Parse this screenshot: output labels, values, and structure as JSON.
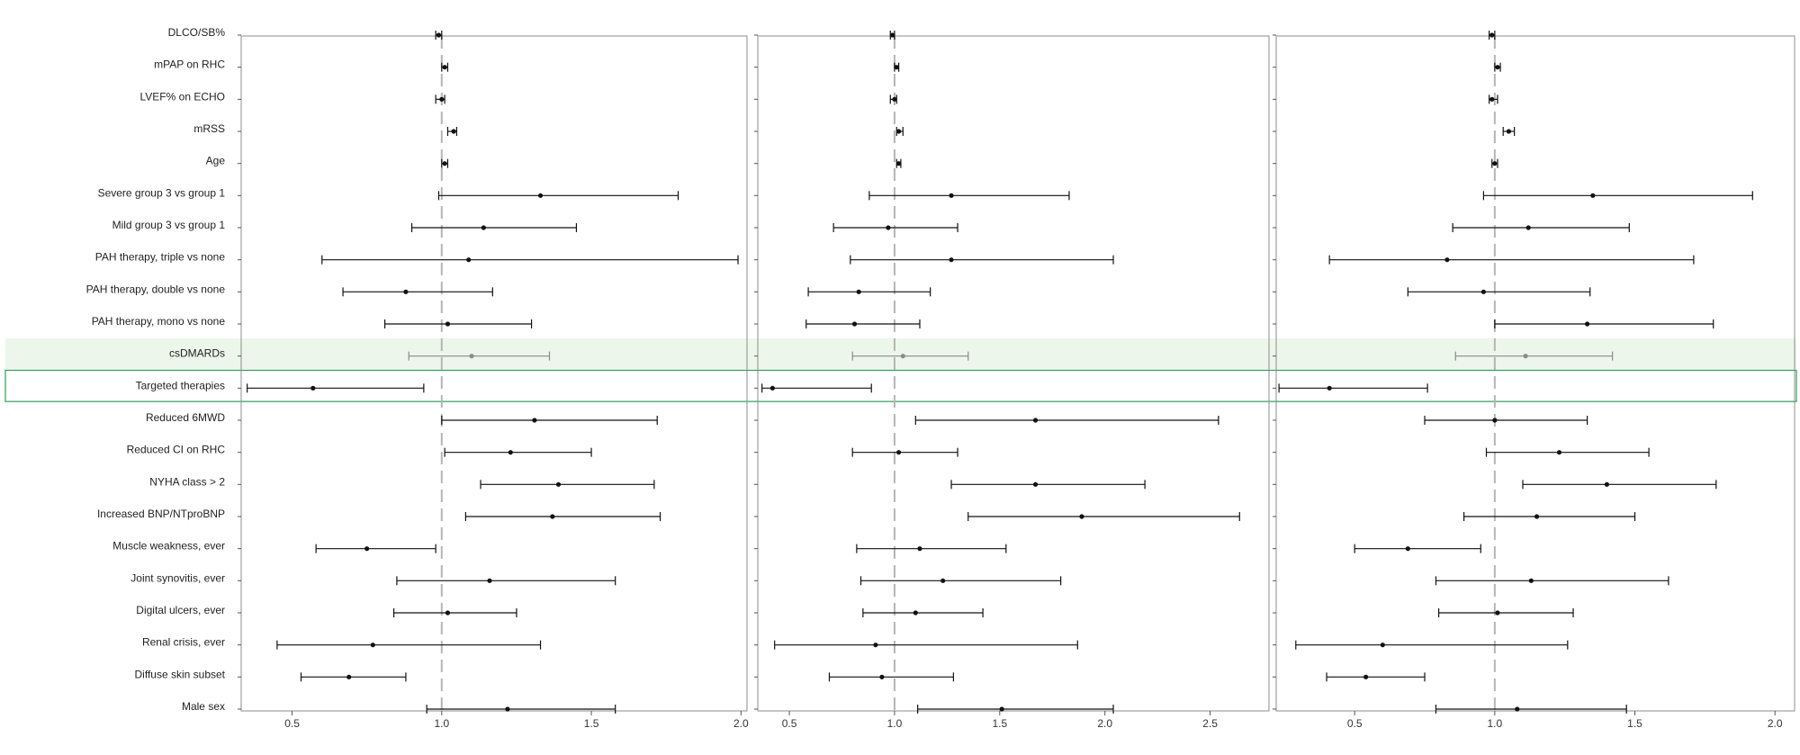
{
  "chart_data": {
    "type": "forest",
    "reference_line": 1.0,
    "highlight_bands": [
      {
        "label": "csDMARDs",
        "style": "green-fill"
      },
      {
        "label": "Targeted therapies",
        "style": "green-outline"
      }
    ],
    "colors": {
      "point": "#111111",
      "muted": "#8a8a8a",
      "ref_line": "#b5b5b5",
      "band_fill": "#edf6ea",
      "band_stroke": "#2e9d5b",
      "frame": "#8c8c8c"
    },
    "labels": [
      "DLCO/SB%",
      "mPAP on RHC",
      "LVEF% on ECHO",
      "mRSS",
      "Age",
      "Severe group 3 vs group 1",
      "Mild group 3 vs group 1",
      "PAH therapy, triple vs none",
      "PAH therapy, double vs none",
      "PAH therapy, mono vs none",
      "csDMARDs",
      "Targeted therapies",
      "Reduced 6MWD",
      "Reduced CI on RHC",
      "NYHA class > 2",
      "Increased BNP/NTproBNP",
      "Muscle weakness, ever",
      "Joint synovitis, ever",
      "Digital ulcers, ever",
      "Renal crisis, ever",
      "Diffuse skin subset",
      "Male sex"
    ],
    "panels": [
      {
        "xlim": [
          0.33,
          2.02
        ],
        "ticks": [
          "0.5",
          "1.0",
          "1.5",
          "2.0"
        ],
        "estimates": [
          [
            0.99,
            0.98,
            1.0
          ],
          [
            1.01,
            1.0,
            1.02
          ],
          [
            1.0,
            0.98,
            1.01
          ],
          [
            1.04,
            1.02,
            1.05
          ],
          [
            1.01,
            1.0,
            1.02
          ],
          [
            1.33,
            0.99,
            1.79
          ],
          [
            1.14,
            0.9,
            1.45
          ],
          [
            1.09,
            0.6,
            1.99
          ],
          [
            0.88,
            0.67,
            1.17
          ],
          [
            1.02,
            0.81,
            1.3
          ],
          [
            1.1,
            0.89,
            1.36
          ],
          [
            0.57,
            0.35,
            0.94
          ],
          [
            1.31,
            1.0,
            1.72
          ],
          [
            1.23,
            1.01,
            1.5
          ],
          [
            1.39,
            1.13,
            1.71
          ],
          [
            1.37,
            1.08,
            1.73
          ],
          [
            0.75,
            0.58,
            0.98
          ],
          [
            1.16,
            0.85,
            1.58
          ],
          [
            1.02,
            0.84,
            1.25
          ],
          [
            0.77,
            0.45,
            1.33
          ],
          [
            0.69,
            0.53,
            0.88
          ],
          [
            1.22,
            0.95,
            1.58
          ]
        ]
      },
      {
        "xlim": [
          0.35,
          2.78
        ],
        "ticks": [
          "0.5",
          "1.0",
          "1.5",
          "2.0",
          "2.5"
        ],
        "estimates": [
          [
            0.99,
            0.98,
            1.0
          ],
          [
            1.01,
            1.0,
            1.02
          ],
          [
            1.0,
            0.98,
            1.01
          ],
          [
            1.02,
            1.01,
            1.04
          ],
          [
            1.02,
            1.01,
            1.03
          ],
          [
            1.27,
            0.88,
            1.83
          ],
          [
            0.97,
            0.71,
            1.3
          ],
          [
            1.27,
            0.79,
            2.04
          ],
          [
            0.83,
            0.59,
            1.17
          ],
          [
            0.81,
            0.58,
            1.12
          ],
          [
            1.04,
            0.8,
            1.35
          ],
          [
            0.42,
            0.37,
            0.89
          ],
          [
            1.67,
            1.1,
            2.54
          ],
          [
            1.02,
            0.8,
            1.3
          ],
          [
            1.67,
            1.27,
            2.19
          ],
          [
            1.89,
            1.35,
            2.64
          ],
          [
            1.12,
            0.82,
            1.53
          ],
          [
            1.23,
            0.84,
            1.79
          ],
          [
            1.1,
            0.85,
            1.42
          ],
          [
            0.91,
            0.43,
            1.87
          ],
          [
            0.94,
            0.69,
            1.28
          ],
          [
            1.51,
            1.11,
            2.04
          ]
        ]
      },
      {
        "xlim": [
          0.22,
          2.07
        ],
        "ticks": [
          "0.5",
          "1.0",
          "1.5",
          "2.0"
        ],
        "estimates": [
          [
            0.99,
            0.98,
            1.0
          ],
          [
            1.01,
            1.0,
            1.02
          ],
          [
            0.99,
            0.98,
            1.01
          ],
          [
            1.05,
            1.03,
            1.07
          ],
          [
            1.0,
            0.99,
            1.01
          ],
          [
            1.35,
            0.96,
            1.92
          ],
          [
            1.12,
            0.85,
            1.48
          ],
          [
            0.83,
            0.41,
            1.71
          ],
          [
            0.96,
            0.69,
            1.34
          ],
          [
            1.33,
            1.0,
            1.78
          ],
          [
            1.11,
            0.86,
            1.42
          ],
          [
            0.41,
            0.23,
            0.76
          ],
          [
            1.0,
            0.75,
            1.33
          ],
          [
            1.23,
            0.97,
            1.55
          ],
          [
            1.4,
            1.1,
            1.79
          ],
          [
            1.15,
            0.89,
            1.5
          ],
          [
            0.69,
            0.5,
            0.95
          ],
          [
            1.13,
            0.79,
            1.62
          ],
          [
            1.01,
            0.8,
            1.28
          ],
          [
            0.6,
            0.29,
            1.26
          ],
          [
            0.54,
            0.4,
            0.75
          ],
          [
            1.08,
            0.79,
            1.47
          ]
        ]
      }
    ]
  }
}
